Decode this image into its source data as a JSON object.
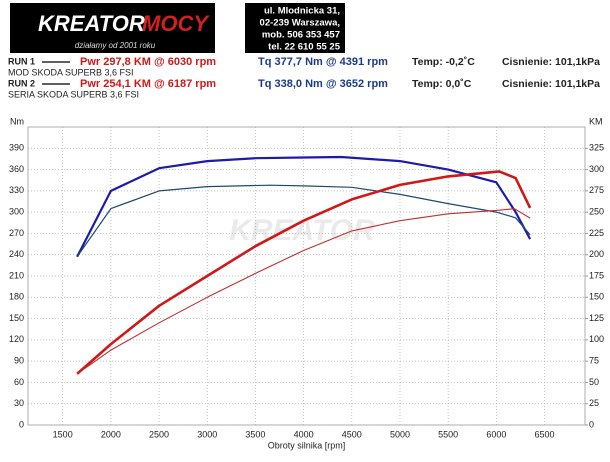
{
  "header": {
    "logo_main": "KREATOR",
    "logo_accent": "MOCY",
    "logo_tagline": "działamy od 2001 roku",
    "address": [
      "ul. Mlodnicka 31,",
      "02-239  Warszawa,",
      "mob.  506 353 457",
      "tel.  22 610 55 25"
    ]
  },
  "runs": [
    {
      "label": "RUN 1",
      "pwr": "Pwr  297,8 KM @ 6030 rpm",
      "tq": "Tq 377,7 Nm @ 4391 rpm",
      "temp": "Temp: -0,2˚C",
      "pressure": "Cisnienie: 101,1kPa",
      "car": "MOD SKODA SUPERB 3,6 FSI"
    },
    {
      "label": "RUN 2",
      "pwr": "Pwr  254,1 KM @ 6187 rpm",
      "tq": "Tq 338,0 Nm @ 3652 rpm",
      "temp": "Temp: 0,0˚C",
      "pressure": "Cisnienie: 101,1kPa",
      "car": "SERIA SKODA SUPERB 3,6 FSI"
    }
  ],
  "chart_data": {
    "type": "line",
    "x_label": "Obroty silnika [rpm]",
    "y_label": "Nm",
    "y2_label": "KM",
    "xlim": [
      1140,
      6920
    ],
    "xticks": [
      1500,
      2000,
      2500,
      3000,
      3500,
      4000,
      4500,
      5000,
      5500,
      6000,
      6500
    ],
    "ylim": [
      0,
      420
    ],
    "yticks": [
      0,
      30,
      60,
      90,
      120,
      150,
      180,
      210,
      240,
      270,
      300,
      330,
      360,
      390
    ],
    "y2lim": [
      0,
      350
    ],
    "y2ticks": [
      0,
      25,
      50,
      75,
      100,
      125,
      150,
      175,
      200,
      225,
      250,
      275,
      300,
      325
    ],
    "grid": true,
    "series": [
      {
        "color": "#1c1ca8",
        "width": 2.2,
        "x": [
          1650,
          2000,
          2500,
          3000,
          3500,
          4000,
          4391,
          5000,
          5500,
          6000,
          6200,
          6350
        ],
        "values": [
          237,
          330,
          362,
          372,
          376,
          377,
          377.7,
          372,
          360,
          342,
          300,
          262
        ]
      },
      {
        "color": "#1d4a6e",
        "width": 1.2,
        "x": [
          1650,
          2000,
          2500,
          3000,
          3652,
          4000,
          4500,
          5000,
          5500,
          6000,
          6200,
          6350
        ],
        "values": [
          237,
          305,
          330,
          336,
          338,
          337,
          335,
          325,
          312,
          300,
          292,
          268
        ]
      },
      {
        "color": "#d01818",
        "width": 2.6,
        "axis": "y2",
        "x": [
          1650,
          2000,
          2500,
          3000,
          3500,
          4000,
          4500,
          5000,
          5500,
          6030,
          6200,
          6350
        ],
        "values": [
          60,
          95,
          140,
          175,
          210,
          240,
          265,
          282,
          292,
          297.8,
          290,
          255
        ]
      },
      {
        "color": "#c03030",
        "width": 1.1,
        "axis": "y2",
        "x": [
          1650,
          2000,
          2500,
          3000,
          3500,
          4000,
          4500,
          5000,
          5500,
          6000,
          6187,
          6350
        ],
        "values": [
          60,
          88,
          120,
          150,
          178,
          205,
          228,
          240,
          248,
          252,
          254.1,
          243
        ]
      }
    ]
  }
}
